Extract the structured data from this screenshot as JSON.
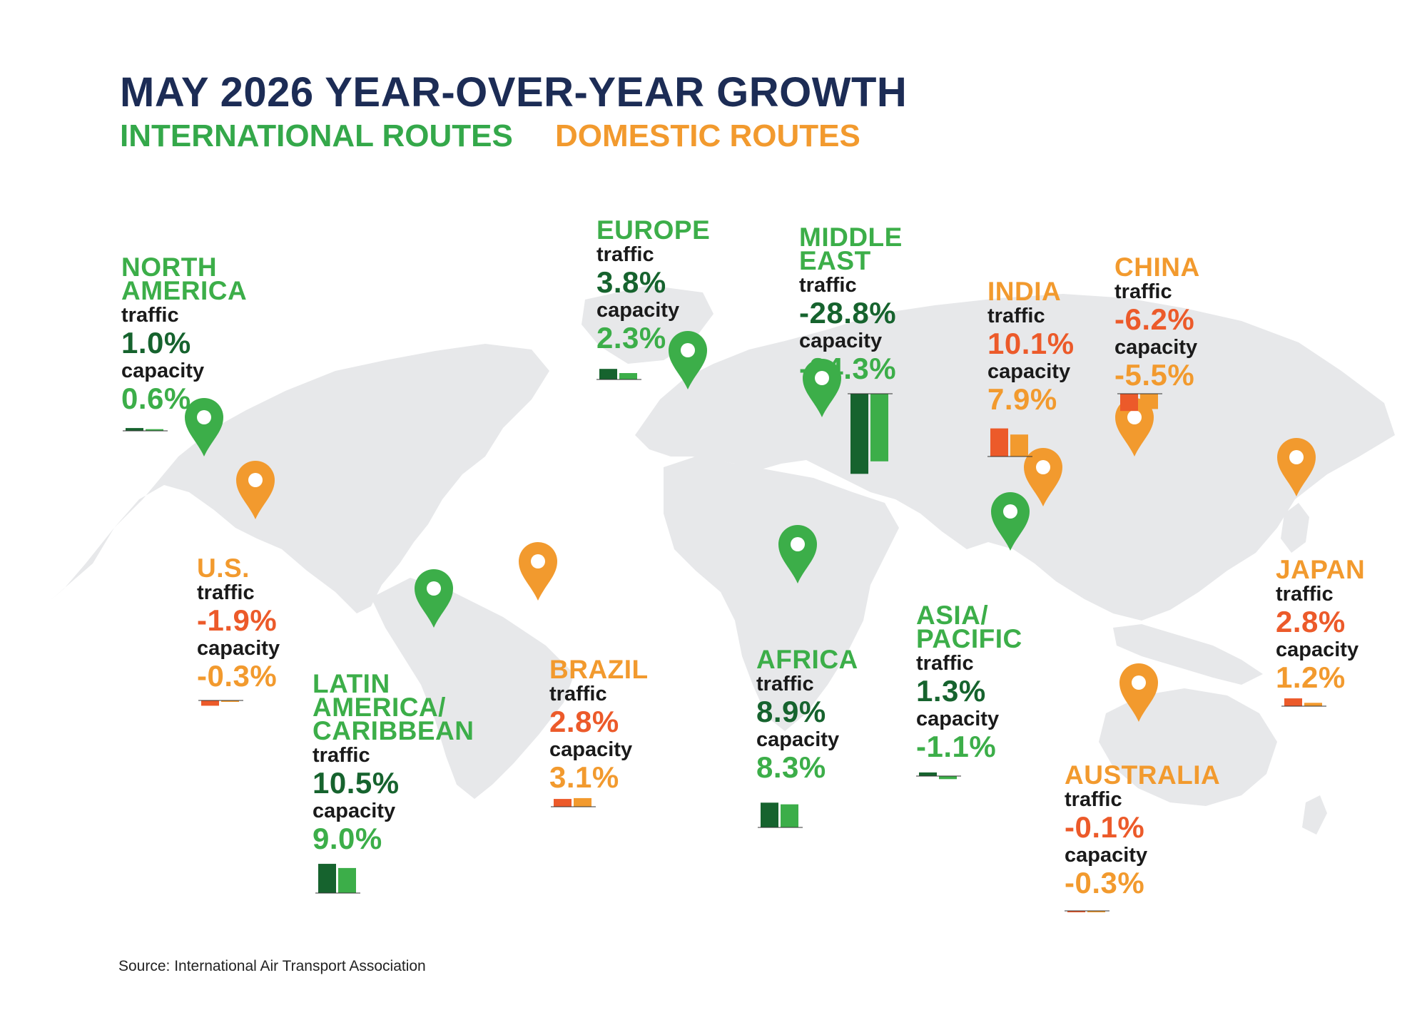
{
  "title": "MAY 2026 YEAR-OVER-YEAR GROWTH",
  "legend": {
    "international": "INTERNATIONAL ROUTES",
    "domestic": "DOMESTIC ROUTES"
  },
  "colors": {
    "title": "#1c2c55",
    "intl_traffic": "#16632e",
    "intl_capacity": "#3cae49",
    "dom_traffic": "#ec5a2a",
    "dom_capacity": "#f29a2e",
    "map": "#e7e8ea"
  },
  "labels": {
    "traffic": "traffic",
    "capacity": "capacity"
  },
  "source": "Source: International Air Transport Association",
  "chart_data": {
    "type": "bar",
    "regions": [
      {
        "id": "north-america",
        "name_lines": [
          "NORTH",
          "AMERICA"
        ],
        "kind": "international",
        "traffic": 1.0,
        "capacity": 0.6,
        "traffic_label": "1.0%",
        "capacity_label": "0.6%"
      },
      {
        "id": "europe",
        "name_lines": [
          "EUROPE"
        ],
        "kind": "international",
        "traffic": 3.8,
        "capacity": 2.3,
        "traffic_label": "3.8%",
        "capacity_label": "2.3%"
      },
      {
        "id": "middle-east",
        "name_lines": [
          "MIDDLE",
          "EAST"
        ],
        "kind": "international",
        "traffic": -28.8,
        "capacity": -24.3,
        "traffic_label": "-28.8%",
        "capacity_label": "-24.3%"
      },
      {
        "id": "india",
        "name_lines": [
          "INDIA"
        ],
        "kind": "domestic",
        "traffic": 10.1,
        "capacity": 7.9,
        "traffic_label": "10.1%",
        "capacity_label": "7.9%"
      },
      {
        "id": "china",
        "name_lines": [
          "CHINA"
        ],
        "kind": "domestic",
        "traffic": -6.2,
        "capacity": -5.5,
        "traffic_label": "-6.2%",
        "capacity_label": "-5.5%"
      },
      {
        "id": "us",
        "name_lines": [
          "U.S."
        ],
        "kind": "domestic",
        "traffic": -1.9,
        "capacity": -0.3,
        "traffic_label": "-1.9%",
        "capacity_label": "-0.3%"
      },
      {
        "id": "latin-america",
        "name_lines": [
          "LATIN",
          "AMERICA/",
          "CARIBBEAN"
        ],
        "kind": "international",
        "traffic": 10.5,
        "capacity": 9.0,
        "traffic_label": "10.5%",
        "capacity_label": "9.0%"
      },
      {
        "id": "brazil",
        "name_lines": [
          "BRAZIL"
        ],
        "kind": "domestic",
        "traffic": 2.8,
        "capacity": 3.1,
        "traffic_label": "2.8%",
        "capacity_label": "3.1%"
      },
      {
        "id": "africa",
        "name_lines": [
          "AFRICA"
        ],
        "kind": "international",
        "traffic": 8.9,
        "capacity": 8.3,
        "traffic_label": "8.9%",
        "capacity_label": "8.3%"
      },
      {
        "id": "asia-pacific",
        "name_lines": [
          "ASIA/",
          "PACIFIC"
        ],
        "kind": "international",
        "traffic": 1.3,
        "capacity": -1.1,
        "traffic_label": "1.3%",
        "capacity_label": "-1.1%"
      },
      {
        "id": "japan",
        "name_lines": [
          "JAPAN"
        ],
        "kind": "domestic",
        "traffic": 2.8,
        "capacity": 1.2,
        "traffic_label": "2.8%",
        "capacity_label": "1.2%"
      },
      {
        "id": "australia",
        "name_lines": [
          "AUSTRALIA"
        ],
        "kind": "domestic",
        "traffic": -0.1,
        "capacity": -0.3,
        "traffic_label": "-0.1%",
        "capacity_label": "-0.3%"
      }
    ]
  }
}
